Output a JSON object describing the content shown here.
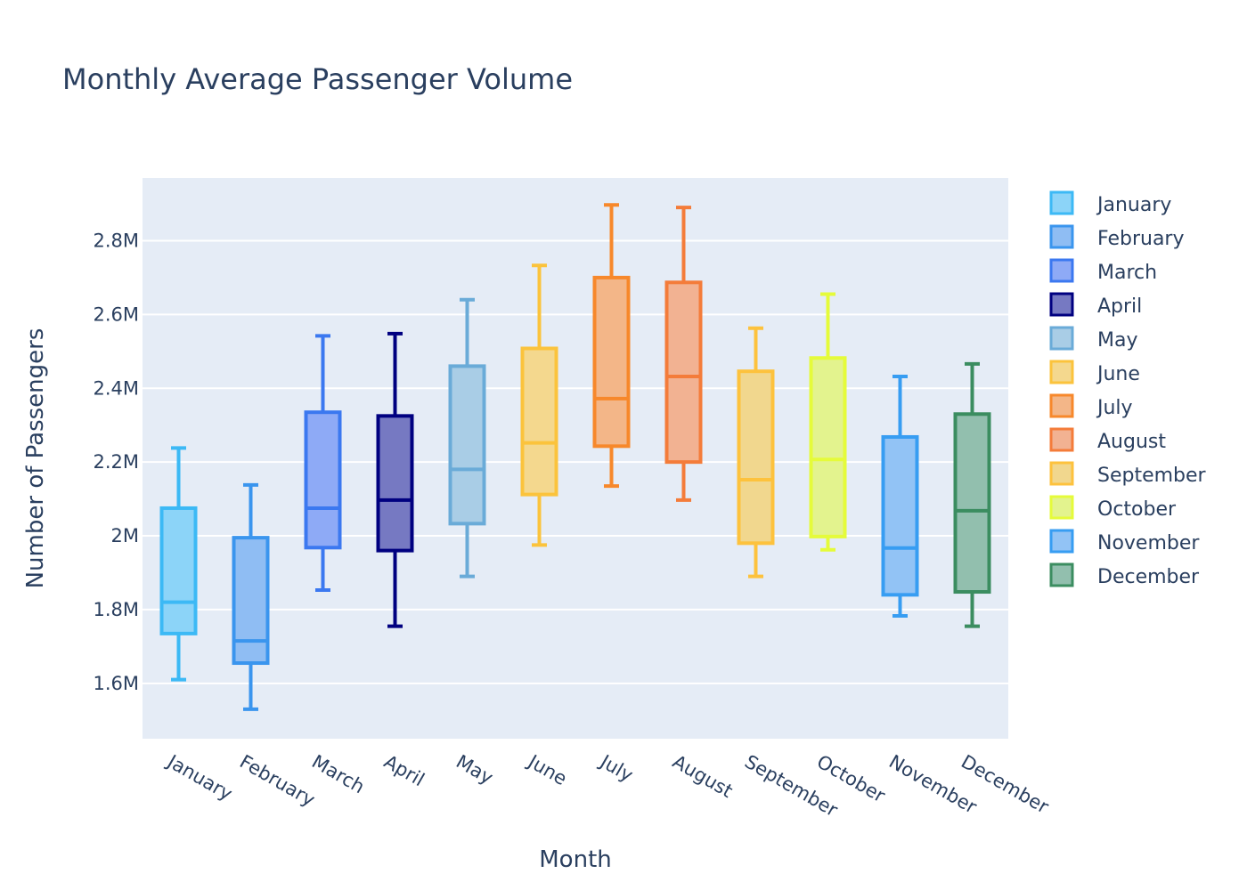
{
  "chart_data": {
    "type": "box",
    "title": "Monthly Average Passenger Volume",
    "xlabel": "Month",
    "ylabel": "Number of Passengers",
    "ylim": [
      1450000,
      2970000
    ],
    "yticks": [
      1600000,
      1800000,
      2000000,
      2200000,
      2400000,
      2600000,
      2800000
    ],
    "ytick_labels": [
      "1.6M",
      "1.8M",
      "2M",
      "2.2M",
      "2.4M",
      "2.6M",
      "2.8M"
    ],
    "grid": true,
    "legend_position": "right",
    "series": [
      {
        "name": "January",
        "color": "#3cb9f5",
        "fill": "#8cd4f8",
        "min": 1610000,
        "q1": 1735000,
        "median": 1820000,
        "q3": 2075000,
        "max": 2238000
      },
      {
        "name": "February",
        "color": "#3a95ee",
        "fill": "#8fbdf3",
        "min": 1530000,
        "q1": 1655000,
        "median": 1715000,
        "q3": 1995000,
        "max": 2138000
      },
      {
        "name": "March",
        "color": "#3b78f0",
        "fill": "#8eaaf6",
        "min": 1853000,
        "q1": 1968000,
        "median": 2075000,
        "q3": 2335000,
        "max": 2542000
      },
      {
        "name": "April",
        "color": "#000080",
        "fill": "#7679c2",
        "min": 1755000,
        "q1": 1960000,
        "median": 2097000,
        "q3": 2325000,
        "max": 2548000
      },
      {
        "name": "May",
        "color": "#6aabd8",
        "fill": "#a9cde6",
        "min": 1890000,
        "q1": 2033000,
        "median": 2180000,
        "q3": 2460000,
        "max": 2640000
      },
      {
        "name": "June",
        "color": "#fbc33c",
        "fill": "#f4d88e",
        "min": 1975000,
        "q1": 2112000,
        "median": 2252000,
        "q3": 2508000,
        "max": 2733000
      },
      {
        "name": "July",
        "color": "#f7882b",
        "fill": "#f3b688",
        "min": 2135000,
        "q1": 2243000,
        "median": 2372000,
        "q3": 2700000,
        "max": 2897000
      },
      {
        "name": "August",
        "color": "#f47c3a",
        "fill": "#f2b292",
        "min": 2097000,
        "q1": 2200000,
        "median": 2432000,
        "q3": 2687000,
        "max": 2890000
      },
      {
        "name": "September",
        "color": "#fdc23d",
        "fill": "#f1d78e",
        "min": 1890000,
        "q1": 1980000,
        "median": 2152000,
        "q3": 2446000,
        "max": 2563000
      },
      {
        "name": "October",
        "color": "#e5fb3a",
        "fill": "#e3f38e",
        "min": 1962000,
        "q1": 1998000,
        "median": 2207000,
        "q3": 2482000,
        "max": 2655000
      },
      {
        "name": "November",
        "color": "#379df2",
        "fill": "#92c3f5",
        "min": 1783000,
        "q1": 1840000,
        "median": 1967000,
        "q3": 2268000,
        "max": 2432000
      },
      {
        "name": "December",
        "color": "#3b8d60",
        "fill": "#92bfae",
        "min": 1755000,
        "q1": 1848000,
        "median": 2068000,
        "q3": 2330000,
        "max": 2466000
      }
    ]
  }
}
